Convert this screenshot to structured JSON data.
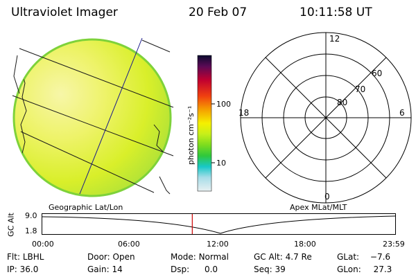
{
  "header": {
    "title": "Ultraviolet Imager",
    "date": "20 Feb 07",
    "time": "10:11:58 UT"
  },
  "colorbar": {
    "unit_label": "photon cm⁻²s⁻¹",
    "tick_100": "100",
    "tick_10": "10"
  },
  "panels": {
    "left_caption": "Geographic Lat/Lon",
    "right_caption": "Apex MLat/MLT"
  },
  "polar": {
    "mlt_labels": [
      "12",
      "6",
      "0",
      "18"
    ],
    "lat_labels": [
      "60",
      "70",
      "80"
    ]
  },
  "altitude_plot": {
    "ylabel": "GC Alt",
    "ytick_top": "9.0",
    "ytick_bottom": "1.8",
    "xticks": [
      "00:00",
      "06:00",
      "12:00",
      "18:00",
      "23:59"
    ],
    "current_time_marker_hours": 10.2
  },
  "status": {
    "filter_label": "Flt:",
    "filter_value": "LBHL",
    "ip_label": "IP:",
    "ip_value": "36.0",
    "door_label": "Door:",
    "door_value": "Open",
    "gain_label": "Gain:",
    "gain_value": "14",
    "mode_label": "Mode:",
    "mode_value": "Normal",
    "dsp_label": "Dsp:",
    "dsp_value": "0.0",
    "gcalt_label": "GC Alt:",
    "gcalt_value": "4.7 Re",
    "seq_label": "Seq:",
    "seq_value": "39",
    "glat_label": "GLat:",
    "glat_value": "−7.6",
    "glon_label": "GLon:",
    "glon_value": "27.3"
  },
  "colors": {
    "disk_fill": "#dff01e",
    "disk_rim": "#7ed23a",
    "disk_highlight": "#f6f59e",
    "grid_line": "#000000",
    "meridian_line": "#1a1a8c",
    "marker": "#cc0000"
  }
}
